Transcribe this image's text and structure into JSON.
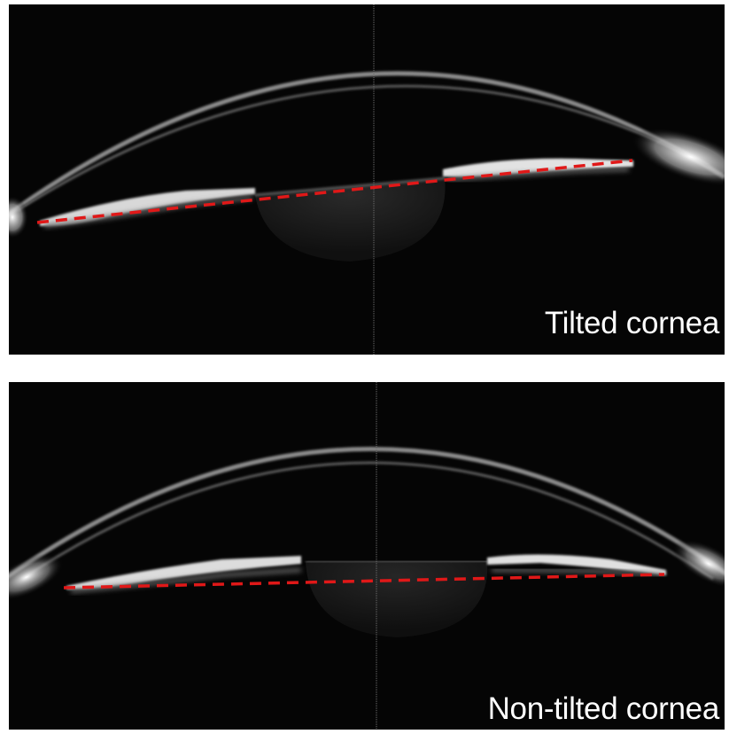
{
  "panels": [
    {
      "caption": "Tilted cornea",
      "reference_line_color": "#e01818",
      "reference_line_style": "dashed",
      "tilted": true
    },
    {
      "caption": "Non-tilted cornea",
      "reference_line_color": "#e01818",
      "reference_line_style": "dashed",
      "tilted": false
    }
  ]
}
